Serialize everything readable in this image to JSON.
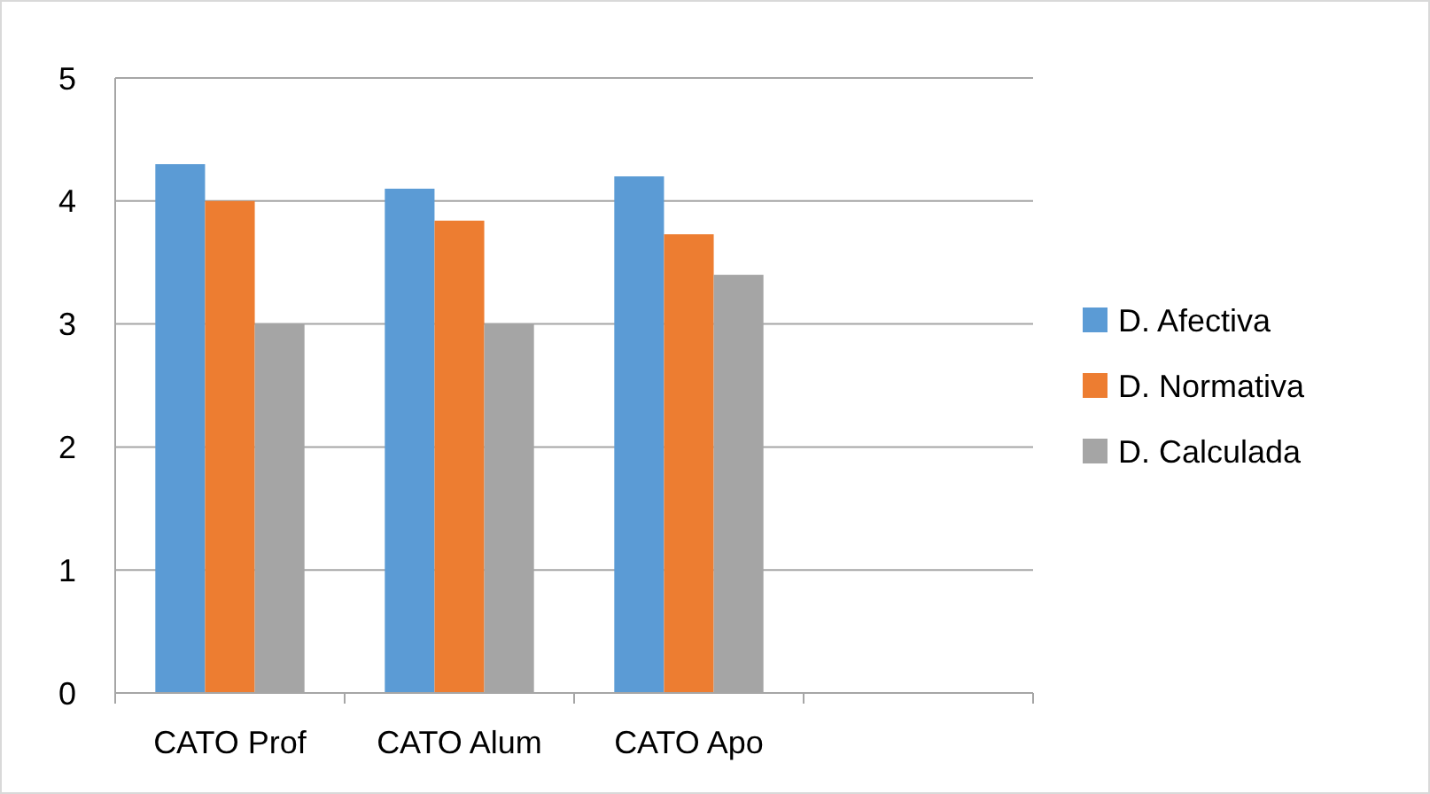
{
  "chart_data": {
    "type": "bar",
    "categories": [
      "CATO Prof",
      "CATO Alum",
      "CATO Apo",
      null
    ],
    "series": [
      {
        "name": "D. Afectiva",
        "color": "#5b9bd5",
        "values": [
          4.3,
          4.1,
          4.2,
          null
        ]
      },
      {
        "name": "D. Normativa",
        "color": "#ed7d31",
        "values": [
          4.0,
          3.84,
          3.73,
          null
        ]
      },
      {
        "name": "D. Calculada",
        "color": "#a5a5a5",
        "values": [
          3.0,
          3.0,
          3.4,
          null
        ]
      }
    ],
    "ylim": [
      0,
      5
    ],
    "yticks": [
      0,
      1,
      2,
      3,
      4,
      5
    ],
    "grid": "y",
    "legend": "right"
  }
}
